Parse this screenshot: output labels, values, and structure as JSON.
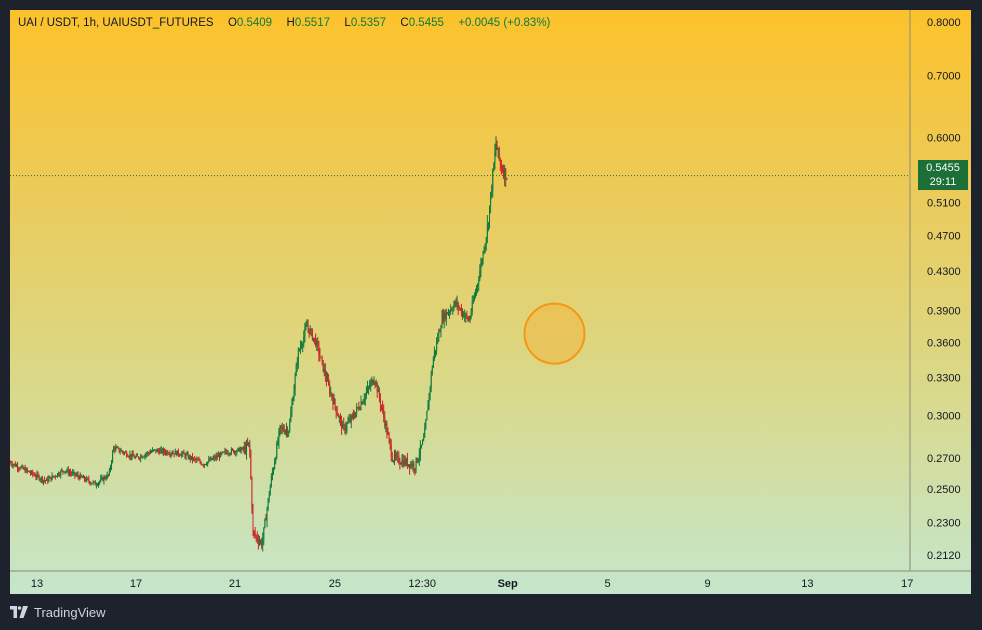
{
  "legend": {
    "symbol": "UAI / USDT, 1h, UAIUSDT_FUTURES",
    "open_label": "O",
    "open": "0.5409",
    "high_label": "H",
    "high": "0.5517",
    "low_label": "L",
    "low": "0.5357",
    "close_label": "C",
    "close": "0.5455",
    "change": "+0.0045 (+0.83%)"
  },
  "price_tag": {
    "price": "0.5455",
    "countdown": "29:11"
  },
  "footer": {
    "brand": "TradingView"
  },
  "colors": {
    "bull": "#0d7a3c",
    "bear": "#c62828",
    "price_tag": "#1b6f37",
    "marker_fill": "#f0b73f",
    "marker_stroke": "#f59713"
  },
  "chart_data": {
    "type": "candlestick",
    "y_scale": "log",
    "y_ticks": [
      "0.8000",
      "0.7000",
      "0.6000",
      "0.5100",
      "0.4700",
      "0.4300",
      "0.3900",
      "0.3600",
      "0.3300",
      "0.3000",
      "0.2700",
      "0.2500",
      "0.2300",
      "0.2120"
    ],
    "x_ticks": [
      "13",
      "17",
      "21",
      "25",
      "12:30",
      "Sep",
      "5",
      "9",
      "13",
      "17"
    ],
    "ylim": [
      0.2,
      0.82
    ],
    "last_price": 0.5455,
    "price_path": [
      {
        "x": 0,
        "y": 0.267
      },
      {
        "x": 0.04,
        "y": 0.255
      },
      {
        "x": 0.06,
        "y": 0.262
      },
      {
        "x": 0.095,
        "y": 0.253
      },
      {
        "x": 0.11,
        "y": 0.259
      },
      {
        "x": 0.115,
        "y": 0.277
      },
      {
        "x": 0.14,
        "y": 0.27
      },
      {
        "x": 0.16,
        "y": 0.275
      },
      {
        "x": 0.19,
        "y": 0.273
      },
      {
        "x": 0.215,
        "y": 0.266
      },
      {
        "x": 0.24,
        "y": 0.274
      },
      {
        "x": 0.262,
        "y": 0.276
      },
      {
        "x": 0.266,
        "y": 0.28
      },
      {
        "x": 0.27,
        "y": 0.224
      },
      {
        "x": 0.28,
        "y": 0.218
      },
      {
        "x": 0.29,
        "y": 0.255
      },
      {
        "x": 0.3,
        "y": 0.29
      },
      {
        "x": 0.31,
        "y": 0.29
      },
      {
        "x": 0.32,
        "y": 0.35
      },
      {
        "x": 0.33,
        "y": 0.375
      },
      {
        "x": 0.34,
        "y": 0.36
      },
      {
        "x": 0.355,
        "y": 0.32
      },
      {
        "x": 0.37,
        "y": 0.29
      },
      {
        "x": 0.38,
        "y": 0.298
      },
      {
        "x": 0.39,
        "y": 0.31
      },
      {
        "x": 0.405,
        "y": 0.33
      },
      {
        "x": 0.415,
        "y": 0.3
      },
      {
        "x": 0.425,
        "y": 0.27
      },
      {
        "x": 0.45,
        "y": 0.265
      },
      {
        "x": 0.46,
        "y": 0.283
      },
      {
        "x": 0.47,
        "y": 0.345
      },
      {
        "x": 0.48,
        "y": 0.382
      },
      {
        "x": 0.495,
        "y": 0.397
      },
      {
        "x": 0.51,
        "y": 0.38
      },
      {
        "x": 0.52,
        "y": 0.42
      },
      {
        "x": 0.53,
        "y": 0.475
      },
      {
        "x": 0.54,
        "y": 0.59
      },
      {
        "x": 0.545,
        "y": 0.56
      },
      {
        "x": 0.552,
        "y": 0.5455
      }
    ],
    "annotations": [
      {
        "type": "circle-marker",
        "x": 0.605,
        "y": 0.368
      }
    ]
  }
}
